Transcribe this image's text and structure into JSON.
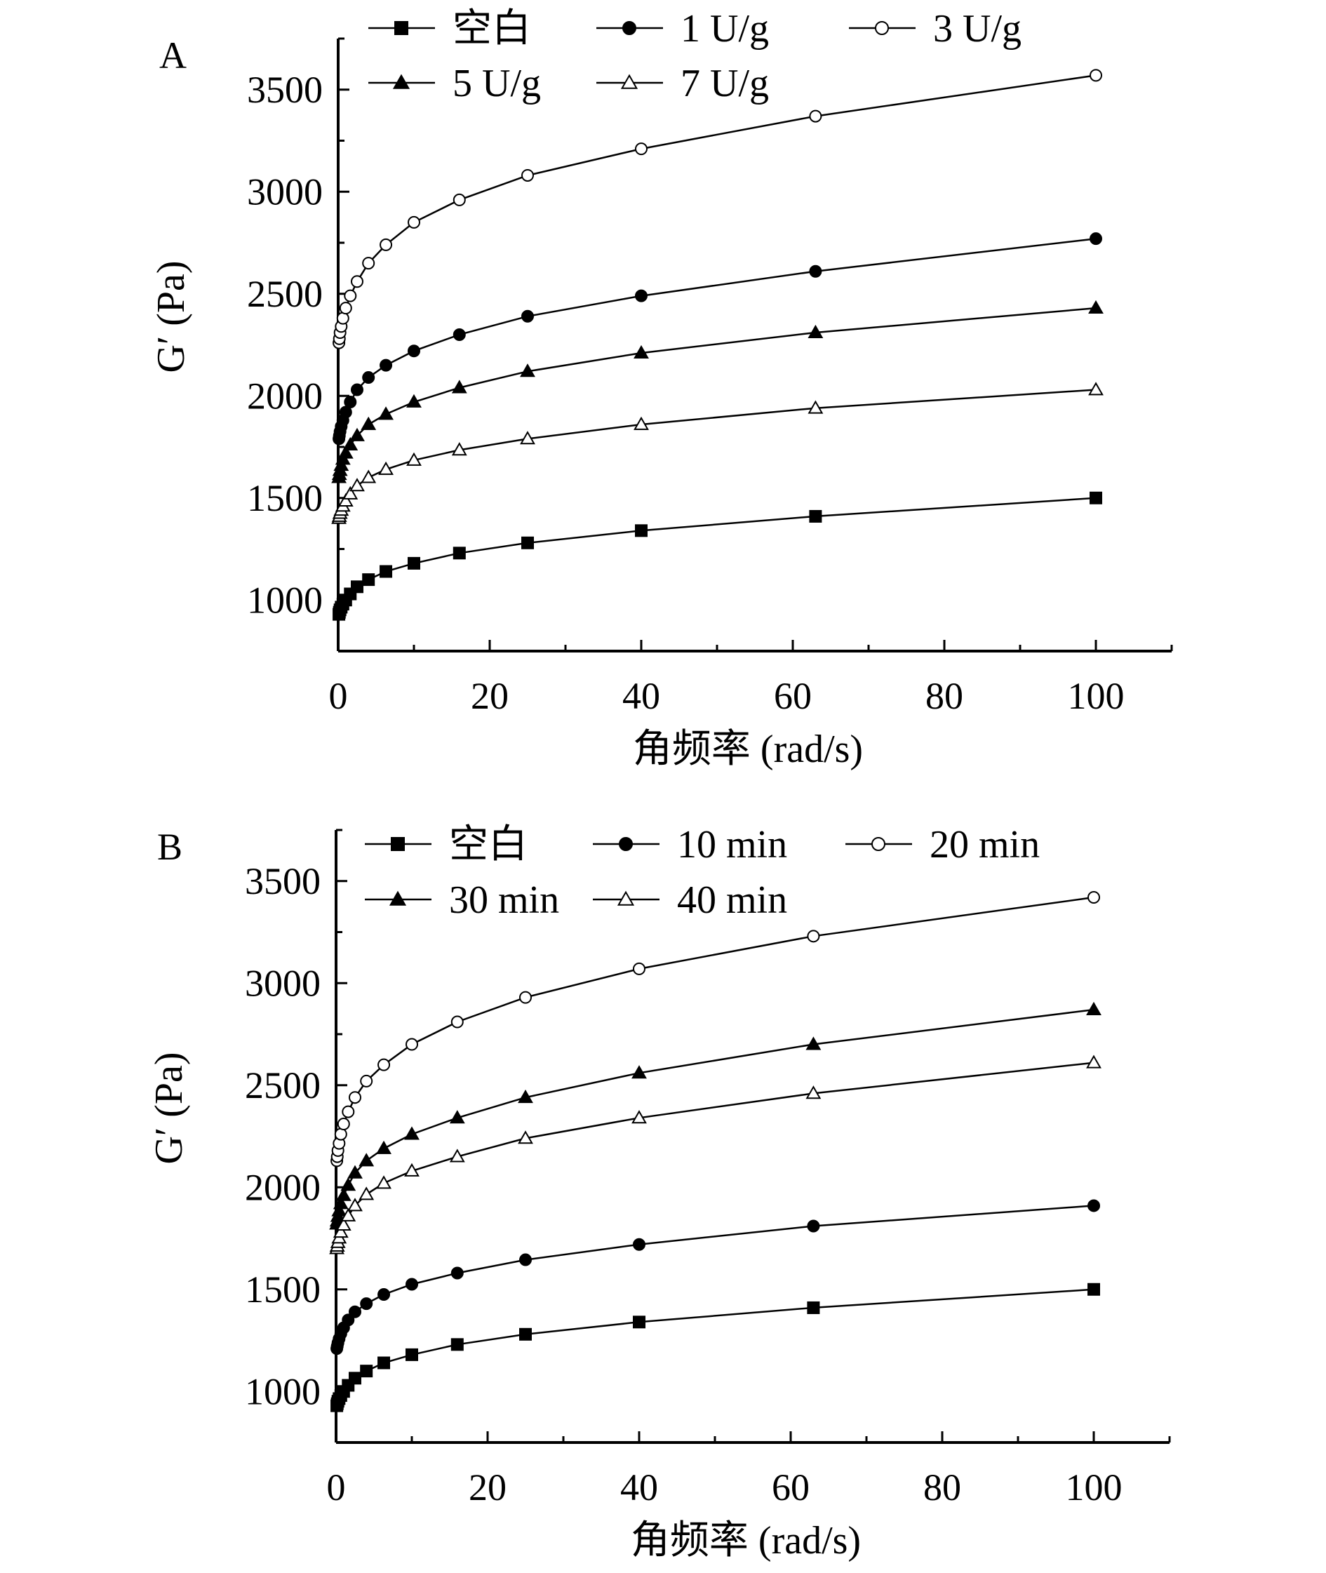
{
  "chart_data": [
    {
      "type": "line",
      "panel_label": "A",
      "xlabel": "角频率 (rad/s)",
      "ylabel": "G′ (Pa)",
      "xlim": [
        0,
        110
      ],
      "ylim": [
        750,
        3750
      ],
      "xticks": [
        0,
        20,
        40,
        60,
        80,
        100
      ],
      "yticks": [
        1000,
        1500,
        2000,
        2500,
        3000,
        3500
      ],
      "legend_position": "top",
      "series": [
        {
          "name": "空白",
          "marker": "filled-square",
          "x": [
            0.1,
            0.16,
            0.25,
            0.4,
            0.63,
            1,
            1.6,
            2.5,
            4,
            6.3,
            10,
            16,
            25,
            40,
            63,
            100
          ],
          "y": [
            930,
            940,
            952,
            965,
            980,
            1000,
            1030,
            1065,
            1100,
            1140,
            1180,
            1230,
            1280,
            1340,
            1410,
            1500
          ]
        },
        {
          "name": "1 U/g",
          "marker": "filled-circle",
          "x": [
            0.1,
            0.16,
            0.25,
            0.4,
            0.63,
            1,
            1.6,
            2.5,
            4,
            6.3,
            10,
            16,
            25,
            40,
            63,
            100
          ],
          "y": [
            1790,
            1805,
            1825,
            1850,
            1880,
            1920,
            1970,
            2030,
            2090,
            2150,
            2220,
            2300,
            2390,
            2490,
            2610,
            2770
          ]
        },
        {
          "name": "3 U/g",
          "marker": "open-circle",
          "x": [
            0.1,
            0.16,
            0.25,
            0.4,
            0.63,
            1,
            1.6,
            2.5,
            4,
            6.3,
            10,
            16,
            25,
            40,
            63,
            100
          ],
          "y": [
            2260,
            2280,
            2310,
            2340,
            2380,
            2430,
            2490,
            2560,
            2650,
            2740,
            2850,
            2960,
            3080,
            3210,
            3370,
            3570
          ]
        },
        {
          "name": "5 U/g",
          "marker": "filled-triangle",
          "x": [
            0.1,
            0.16,
            0.25,
            0.4,
            0.63,
            1,
            1.6,
            2.5,
            4,
            6.3,
            10,
            16,
            25,
            40,
            63,
            100
          ],
          "y": [
            1600,
            1615,
            1635,
            1660,
            1690,
            1720,
            1760,
            1805,
            1860,
            1910,
            1970,
            2040,
            2120,
            2210,
            2310,
            2430
          ]
        },
        {
          "name": "7 U/g",
          "marker": "open-triangle",
          "x": [
            0.1,
            0.16,
            0.25,
            0.4,
            0.63,
            1,
            1.6,
            2.5,
            4,
            6.3,
            10,
            16,
            25,
            40,
            63,
            100
          ],
          "y": [
            1400,
            1410,
            1425,
            1440,
            1460,
            1485,
            1520,
            1560,
            1600,
            1640,
            1685,
            1735,
            1790,
            1860,
            1940,
            2030
          ]
        }
      ]
    },
    {
      "type": "line",
      "panel_label": "B",
      "xlabel": "角频率 (rad/s)",
      "ylabel": "G′ (Pa)",
      "xlim": [
        0,
        110
      ],
      "ylim": [
        750,
        3750
      ],
      "xticks": [
        0,
        20,
        40,
        60,
        80,
        100
      ],
      "yticks": [
        1000,
        1500,
        2000,
        2500,
        3000,
        3500
      ],
      "legend_position": "top",
      "series": [
        {
          "name": "空白",
          "marker": "filled-square",
          "x": [
            0.1,
            0.16,
            0.25,
            0.4,
            0.63,
            1,
            1.6,
            2.5,
            4,
            6.3,
            10,
            16,
            25,
            40,
            63,
            100
          ],
          "y": [
            930,
            940,
            952,
            965,
            980,
            1000,
            1030,
            1065,
            1100,
            1140,
            1180,
            1230,
            1280,
            1340,
            1410,
            1500
          ]
        },
        {
          "name": "10 min",
          "marker": "filled-circle",
          "x": [
            0.1,
            0.16,
            0.25,
            0.4,
            0.63,
            1,
            1.6,
            2.5,
            4,
            6.3,
            10,
            16,
            25,
            40,
            63,
            100
          ],
          "y": [
            1210,
            1222,
            1238,
            1258,
            1283,
            1312,
            1350,
            1390,
            1430,
            1475,
            1525,
            1580,
            1645,
            1720,
            1810,
            1910
          ]
        },
        {
          "name": "20 min",
          "marker": "open-circle",
          "x": [
            0.1,
            0.16,
            0.25,
            0.4,
            0.63,
            1,
            1.6,
            2.5,
            4,
            6.3,
            10,
            16,
            25,
            40,
            63,
            100
          ],
          "y": [
            2130,
            2150,
            2180,
            2215,
            2260,
            2310,
            2370,
            2440,
            2520,
            2600,
            2700,
            2810,
            2930,
            3070,
            3230,
            3420
          ]
        },
        {
          "name": "30 min",
          "marker": "filled-triangle",
          "x": [
            0.1,
            0.16,
            0.25,
            0.4,
            0.63,
            1,
            1.6,
            2.5,
            4,
            6.3,
            10,
            16,
            25,
            40,
            63,
            100
          ],
          "y": [
            1820,
            1835,
            1858,
            1885,
            1920,
            1960,
            2010,
            2070,
            2130,
            2190,
            2260,
            2340,
            2440,
            2560,
            2700,
            2870
          ]
        },
        {
          "name": "40 min",
          "marker": "open-triangle",
          "x": [
            0.1,
            0.16,
            0.25,
            0.4,
            0.63,
            1,
            1.6,
            2.5,
            4,
            6.3,
            10,
            16,
            25,
            40,
            63,
            100
          ],
          "y": [
            1700,
            1712,
            1730,
            1752,
            1780,
            1815,
            1860,
            1910,
            1965,
            2020,
            2080,
            2150,
            2240,
            2340,
            2460,
            2610
          ]
        }
      ]
    }
  ]
}
